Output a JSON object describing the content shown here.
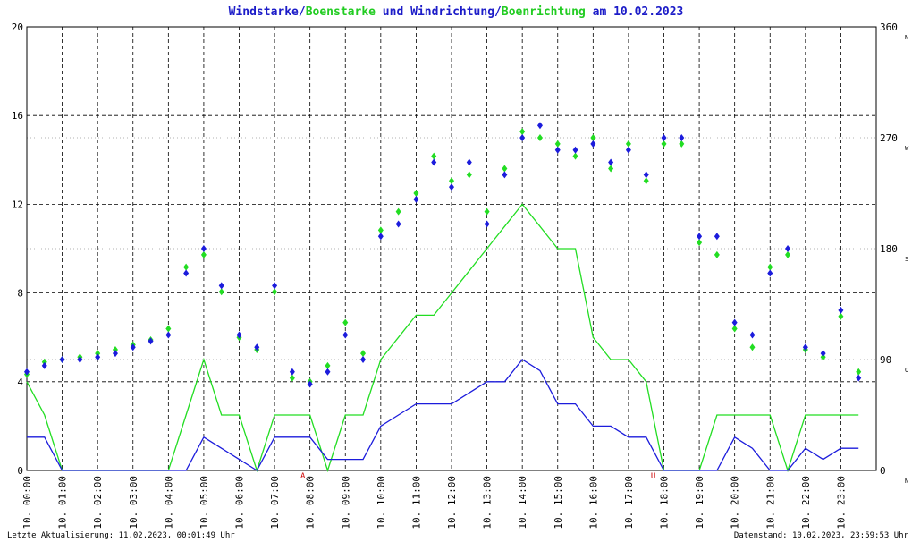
{
  "chart_data": {
    "type": "wind",
    "title_parts": [
      "Windstarke/",
      "Boenstarke",
      " und Windrichtung/",
      "Boenrichtung",
      " am 10.02.2023"
    ],
    "title_colors": [
      "#1c1cc8",
      "#22cc22",
      "#1c1cc8",
      "#22cc22",
      "#1c1cc8"
    ],
    "x": [
      0,
      0.5,
      1,
      1.5,
      2,
      2.5,
      3,
      3.5,
      4,
      4.5,
      5,
      5.5,
      6,
      6.5,
      7,
      7.5,
      8,
      8.5,
      9,
      9.5,
      10,
      10.5,
      11,
      11.5,
      12,
      12.5,
      13,
      13.5,
      14,
      14.5,
      15,
      15.5,
      16,
      16.5,
      17,
      17.5,
      18,
      18.5,
      19,
      19.5,
      20,
      20.5,
      21,
      21.5,
      22,
      22.5,
      23,
      23.5
    ],
    "series": [
      {
        "name": "Windstarke",
        "color": "#1c1cdc",
        "values": [
          1.5,
          1.5,
          0,
          0,
          0,
          0,
          0,
          0,
          0,
          0,
          1.5,
          1,
          0.5,
          0,
          1.5,
          1.5,
          1.5,
          0.5,
          0.5,
          0.5,
          2,
          2.5,
          3,
          3,
          3,
          3.5,
          4,
          4,
          5,
          4.5,
          3,
          3,
          2,
          2,
          1.5,
          1.5,
          0,
          0,
          0,
          0,
          1.5,
          1,
          0,
          0,
          1,
          0.5,
          1,
          1
        ]
      },
      {
        "name": "Boenstarke",
        "color": "#22dd22",
        "values": [
          4,
          2.5,
          0,
          0,
          0,
          0,
          0,
          0,
          0,
          2.5,
          5,
          2.5,
          2.5,
          0,
          2.5,
          2.5,
          2.5,
          0,
          2.5,
          2.5,
          5,
          6,
          7,
          7,
          8,
          9,
          10,
          11,
          12,
          11,
          10,
          10,
          6,
          5,
          5,
          4,
          0,
          0,
          0,
          2.5,
          2.5,
          2.5,
          2.5,
          0,
          2.5,
          2.5,
          2.5,
          2.5
        ]
      },
      {
        "name": "Windrichtung",
        "color": "#1c1cdc",
        "axis": "y2",
        "values": [
          80,
          85,
          90,
          90,
          92,
          95,
          100,
          105,
          110,
          160,
          180,
          150,
          110,
          100,
          150,
          80,
          70,
          80,
          110,
          90,
          190,
          200,
          220,
          250,
          230,
          250,
          200,
          240,
          270,
          280,
          260,
          260,
          265,
          250,
          260,
          240,
          270,
          270,
          190,
          190,
          120,
          110,
          160,
          180,
          100,
          95,
          130,
          75
        ]
      },
      {
        "name": "Boenrichtung",
        "color": "#22dd22",
        "axis": "y2",
        "values": [
          78,
          88,
          90,
          92,
          95,
          98,
          102,
          106,
          115,
          165,
          175,
          145,
          108,
          98,
          145,
          75,
          72,
          85,
          120,
          95,
          195,
          210,
          225,
          255,
          235,
          240,
          210,
          245,
          275,
          270,
          265,
          255,
          270,
          245,
          265,
          235,
          265,
          265,
          185,
          175,
          115,
          100,
          165,
          175,
          98,
          92,
          125,
          80
        ]
      }
    ],
    "xlim": [
      0,
      24
    ],
    "xticks": [
      {
        "value": 0,
        "label": "10. 00:00"
      },
      {
        "value": 1,
        "label": "10. 01:00"
      },
      {
        "value": 2,
        "label": "10. 02:00"
      },
      {
        "value": 3,
        "label": "10. 03:00"
      },
      {
        "value": 4,
        "label": "10. 04:00"
      },
      {
        "value": 5,
        "label": "10. 05:00"
      },
      {
        "value": 6,
        "label": "10. 06:00"
      },
      {
        "value": 7,
        "label": "10. 07:00"
      },
      {
        "value": 8,
        "label": "10. 08:00"
      },
      {
        "value": 9,
        "label": "10. 09:00"
      },
      {
        "value": 10,
        "label": "10. 10:00"
      },
      {
        "value": 11,
        "label": "10. 11:00"
      },
      {
        "value": 12,
        "label": "10. 12:00"
      },
      {
        "value": 13,
        "label": "10. 13:00"
      },
      {
        "value": 14,
        "label": "10. 14:00"
      },
      {
        "value": 15,
        "label": "10. 15:00"
      },
      {
        "value": 16,
        "label": "10. 16:00"
      },
      {
        "value": 17,
        "label": "10. 17:00"
      },
      {
        "value": 18,
        "label": "10. 18:00"
      },
      {
        "value": 19,
        "label": "10. 19:00"
      },
      {
        "value": 20,
        "label": "10. 20:00"
      },
      {
        "value": 21,
        "label": "10. 21:00"
      },
      {
        "value": 22,
        "label": "10. 22:00"
      },
      {
        "value": 23,
        "label": "10. 23:00"
      }
    ],
    "ylim": [
      0,
      20
    ],
    "yticks": [
      0,
      4,
      8,
      12,
      16,
      20
    ],
    "y2lim": [
      0,
      360
    ],
    "y2ticks": [
      0,
      90,
      180,
      270,
      360
    ],
    "y2tick_directions": [
      "N",
      "O",
      "S",
      "W",
      "N"
    ],
    "sun_markers": [
      {
        "label": "A",
        "x": 7.8
      },
      {
        "label": "U",
        "x": 17.7
      }
    ],
    "grid": true,
    "footer_left": "Letzte Aktualisierung: 11.02.2023, 00:01:49 Uhr",
    "footer_right": "Datenstand: 10.02.2023, 23:59:53 Uhr"
  }
}
